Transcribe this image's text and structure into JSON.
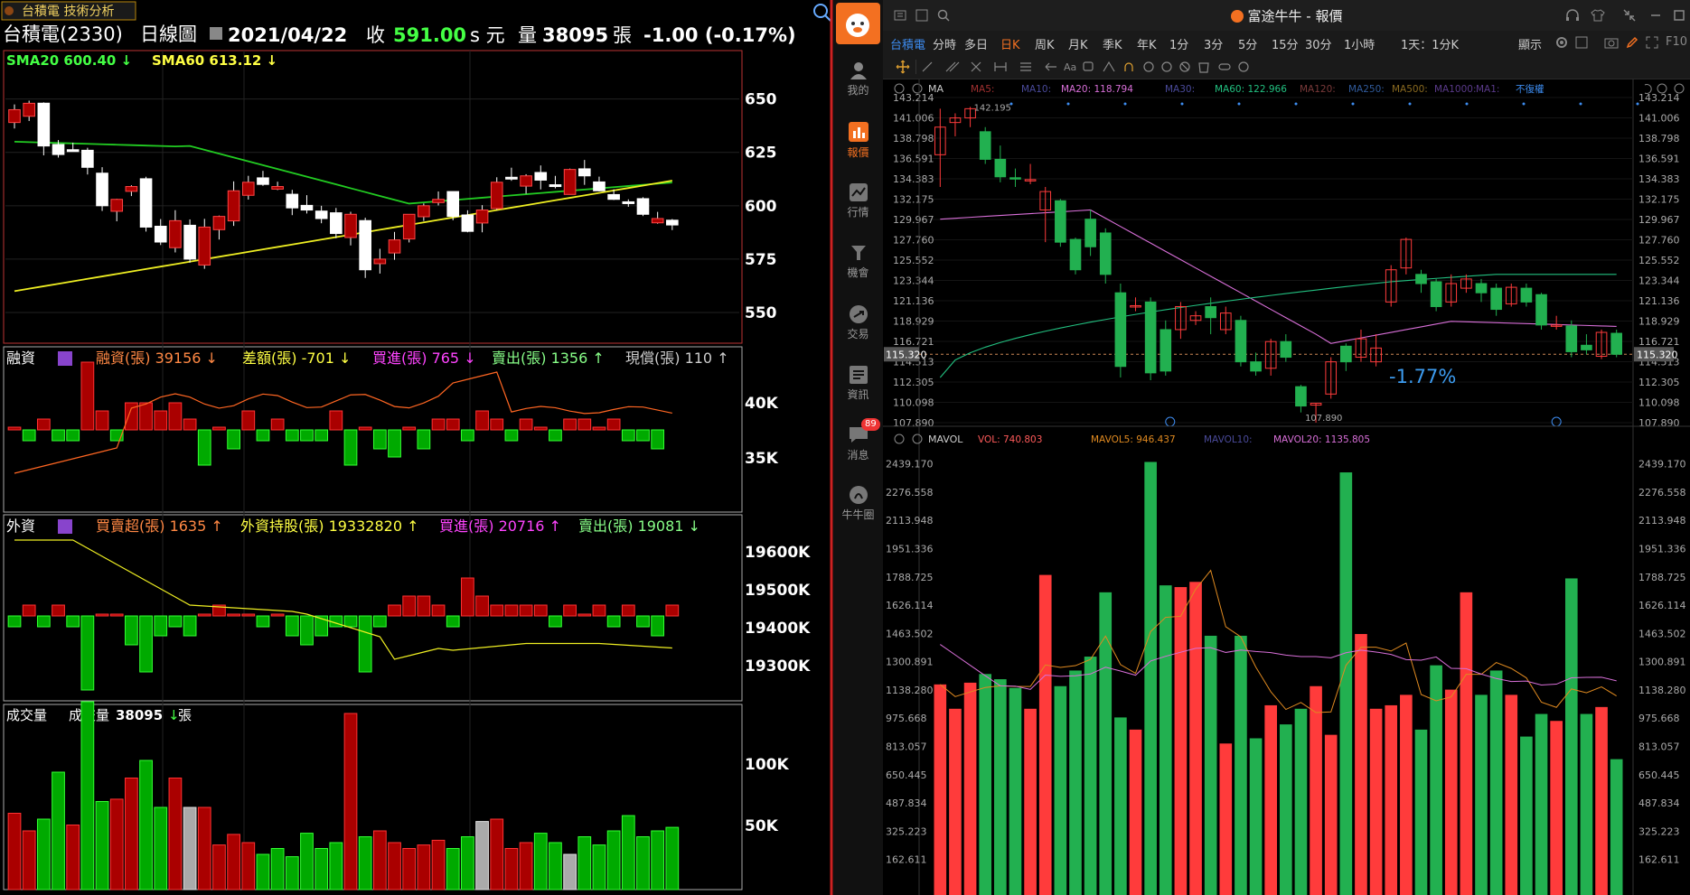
{
  "left": {
    "window_title": "台積電 技術分析",
    "stock": "台積電(2330)",
    "period": "日線圖",
    "date": "2021/04/22",
    "close_label": "收",
    "close": "591.00",
    "unit": "s 元",
    "vol_label": "量",
    "vol": "38095",
    "vol_unit": "張",
    "change": "-1.00 (-0.17%)",
    "sma20": "SMA20 600.40",
    "sma60": "SMA60 613.12",
    "price_ticks": [
      "650",
      "625",
      "600",
      "575",
      "550"
    ],
    "margin": {
      "title": "融資",
      "buy": "融資(張) 39156",
      "diff": "差額(張) -701",
      "in": "買進(張) 765",
      "out": "賣出(張) 1356",
      "cash": "現償(張) 110",
      "ticks": [
        "40K",
        "35K"
      ]
    },
    "foreign": {
      "title": "外資",
      "net": "買賣超(張) 1635",
      "hold": "外資持股(張) 19332820",
      "in": "買進(張) 20716",
      "out": "賣出(張) 19081",
      "ticks": [
        "19600K",
        "19500K",
        "19400K",
        "19300K"
      ]
    },
    "volume": {
      "title": "成交量",
      "label": "成交量",
      "val": "38095",
      "unit": "張",
      "ticks": [
        "100K",
        "50K"
      ]
    }
  },
  "right": {
    "app_title": "富途牛牛 - 報價",
    "nav": [
      "我的",
      "報價",
      "行情",
      "機會",
      "交易",
      "資訊",
      "消息",
      "牛牛圈"
    ],
    "msg_badge": "89",
    "stock_tab": "台積電",
    "timeframes": [
      "分時",
      "多日",
      "日K",
      "周K",
      "月K",
      "季K",
      "年K",
      "1分",
      "3分",
      "5分",
      "15分",
      "30分",
      "1小時",
      "1天：1分K"
    ],
    "active_tf": "日K",
    "display": "顯示",
    "ma_label": "MA",
    "ma_items": [
      "MA5:",
      "MA10:",
      "MA20: 118.794",
      "MA30:",
      "MA60: 122.966",
      "MA120:",
      "MA250:",
      "MA500:",
      "MA1000:",
      "MA1:",
      "不復權"
    ],
    "price_ticks": [
      "143.214",
      "141.006",
      "138.798",
      "136.591",
      "134.383",
      "132.175",
      "129.967",
      "127.760",
      "125.552",
      "123.344",
      "121.136",
      "118.929",
      "116.721",
      "114.513",
      "112.305",
      "110.098",
      "107.890"
    ],
    "current_price": "115.320",
    "high_label": "142.195",
    "low_label": "107.890",
    "change_pct": "-1.77%",
    "vol_label": "MAVOL",
    "vol_items": [
      "VOL: 740.803",
      "MAVOL5: 946.437",
      "MAVOL10:",
      "MAVOL20: 1135.805"
    ],
    "vol_ticks": [
      "2439.170",
      "2276.558",
      "2113.948",
      "1951.336",
      "1788.725",
      "1626.114",
      "1463.502",
      "1300.891",
      "1138.280",
      "975.668",
      "813.057",
      "650.445",
      "487.834",
      "325.223",
      "162.611"
    ],
    "colors": {
      "up": "#ff3b3b",
      "down": "#22b050",
      "ma20": "#d86fd8",
      "ma60": "#22c080",
      "accent": "#f37021",
      "blue": "#3d8cf0"
    }
  }
}
